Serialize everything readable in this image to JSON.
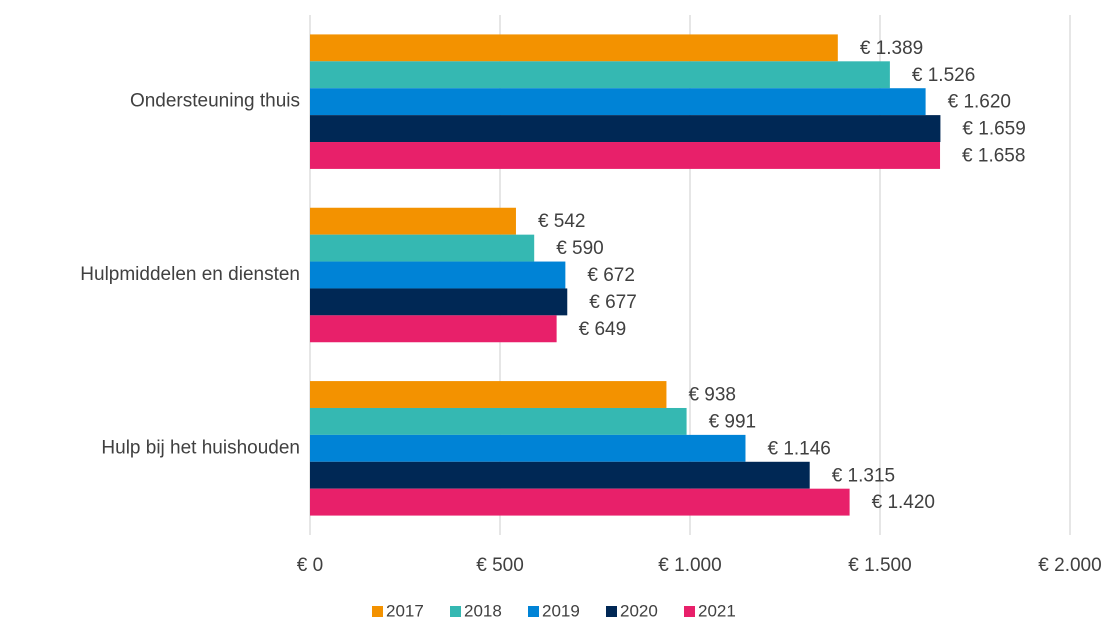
{
  "chart_data": {
    "type": "bar",
    "orientation": "horizontal",
    "categories": [
      "Ondersteuning thuis",
      "Hulpmiddelen en diensten",
      "Hulp bij het huishouden"
    ],
    "series": [
      {
        "name": "2017",
        "color": "#f39200",
        "values": [
          1389,
          542,
          938
        ],
        "value_labels": [
          "€ 1.389",
          "€ 542",
          "€ 938"
        ]
      },
      {
        "name": "2018",
        "color": "#35b8b2",
        "values": [
          1526,
          590,
          991
        ],
        "value_labels": [
          "€ 1.526",
          "€ 590",
          "€ 991"
        ]
      },
      {
        "name": "2019",
        "color": "#0083d6",
        "values": [
          1620,
          672,
          1146
        ],
        "value_labels": [
          "€ 1.620",
          "€ 672",
          "€ 1.146"
        ]
      },
      {
        "name": "2020",
        "color": "#002855",
        "values": [
          1659,
          677,
          1315
        ],
        "value_labels": [
          "€ 1.659",
          "€ 677",
          "€ 1.315"
        ]
      },
      {
        "name": "2021",
        "color": "#e8206a",
        "values": [
          1658,
          649,
          1420
        ],
        "value_labels": [
          "€ 1.658",
          "€ 649",
          "€ 1.420"
        ]
      }
    ],
    "xlim": [
      0,
      2000
    ],
    "xticks": [
      {
        "value": 0,
        "label": "€ 0"
      },
      {
        "value": 500,
        "label": "€ 500"
      },
      {
        "value": 1000,
        "label": "€ 1.000"
      },
      {
        "value": 1500,
        "label": "€ 1.500"
      },
      {
        "value": 2000,
        "label": "€ 2.000"
      }
    ],
    "grid": true,
    "legend": "bottom"
  }
}
